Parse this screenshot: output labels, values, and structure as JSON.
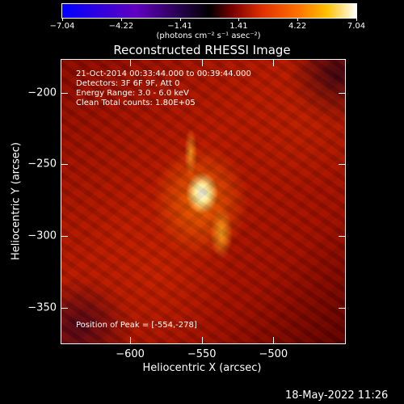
{
  "chart_data": {
    "type": "heatmap",
    "title": "Reconstructed RHESSI Image",
    "xlabel": "Heliocentric X (arcsec)",
    "ylabel": "Heliocentric Y (arcsec)",
    "xlim": [
      -648,
      -450
    ],
    "ylim": [
      -375,
      -177
    ],
    "xticks": [
      -600,
      -550,
      -500
    ],
    "yticks": [
      -200,
      -250,
      -300,
      -350
    ],
    "colorbar": {
      "ticks": [
        "-7.04",
        "-4.22",
        "-1.41",
        "1.41",
        "4.22",
        "7.04"
      ],
      "range": [
        -7.04,
        7.04
      ],
      "units": "(photons cm⁻² s⁻¹ asec⁻²)"
    },
    "annotations": [
      "21-Oct-2014 00:33:44.000 to 00:39:44.000",
      "Detectors: 3F 6F 9F, Att 0",
      "Energy Range: 3.0 - 6.0 keV",
      "Clean    Total counts: 1.80E+05"
    ],
    "peak_label": "Position of Peak = [-554,-278]",
    "peak": [
      -554,
      -278
    ],
    "colors": {
      "peak": "#ffffff",
      "background": "#b01800"
    }
  },
  "footer": {
    "date": "18-May-2022 11:26"
  }
}
